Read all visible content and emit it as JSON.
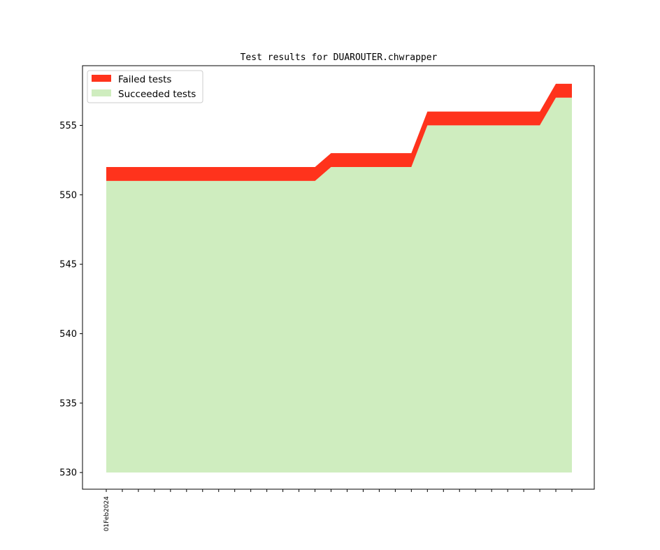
{
  "colors": {
    "failed": "#ff331c",
    "succeeded": "#cfedbf",
    "axis": "#000000",
    "background": "#ffffff"
  },
  "chart_data": {
    "type": "area",
    "title": "Test results for DUAROUTER.chwrapper",
    "xlabel": "",
    "ylabel": "",
    "x": [
      "01Feb2024",
      "",
      "",
      "",
      "",
      "",
      "",
      "",
      "",
      "",
      "",
      "",
      "",
      "",
      "",
      "",
      "",
      "",
      "",
      "",
      "",
      "",
      "",
      "",
      "",
      "",
      "",
      "",
      "",
      ""
    ],
    "ylim": [
      528.8,
      559.3
    ],
    "yticks": [
      530,
      535,
      540,
      545,
      550,
      555
    ],
    "ytick_labels": [
      "530",
      "535",
      "540",
      "545",
      "550",
      "555"
    ],
    "baseline": 530,
    "grid": false,
    "legend_position": "top-left",
    "series": [
      {
        "name": "Succeeded tests",
        "color": "#cfedbf",
        "values": [
          551,
          551,
          551,
          551,
          551,
          551,
          551,
          551,
          551,
          551,
          551,
          551,
          551,
          551,
          552,
          552,
          552,
          552,
          552,
          552,
          555,
          555,
          555,
          555,
          555,
          555,
          555,
          555,
          557,
          557
        ]
      },
      {
        "name": "Failed tests",
        "color": "#ff331c",
        "values": [
          1,
          1,
          1,
          1,
          1,
          1,
          1,
          1,
          1,
          1,
          1,
          1,
          1,
          1,
          1,
          1,
          1,
          1,
          1,
          1,
          1,
          1,
          1,
          1,
          1,
          1,
          1,
          1,
          1,
          1
        ]
      }
    ]
  },
  "legend": {
    "items": [
      {
        "label": "Failed tests",
        "color": "#ff331c"
      },
      {
        "label": "Succeeded tests",
        "color": "#cfedbf"
      }
    ]
  }
}
